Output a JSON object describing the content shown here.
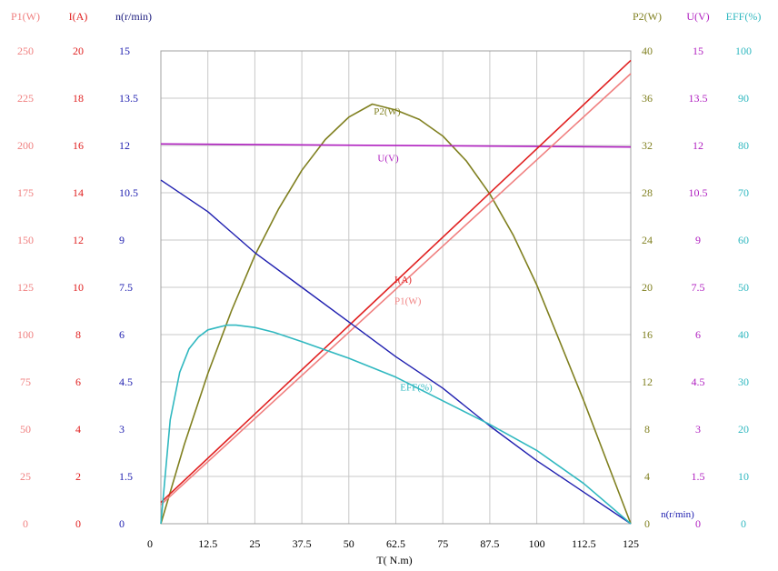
{
  "chart_data": {
    "type": "line",
    "title": "",
    "xlabel": "T( N.m)",
    "xlim": [
      0,
      125
    ],
    "x_ticks": [
      "0",
      "12.5",
      "25",
      "37.5",
      "50",
      "62.5",
      "75",
      "87.5",
      "100",
      "112.5",
      "125"
    ],
    "grid": true,
    "colors": {
      "P1": "#f08080",
      "I": "#e02020",
      "n": "#2020b0",
      "P2": "#808020",
      "U": "#b020c0",
      "EFF": "#30b8c0",
      "grid": "#c8c8c8"
    },
    "axes": [
      {
        "key": "P1",
        "label": "P1(W)",
        "side": "left",
        "min": 0,
        "max": 250,
        "ticks": [
          "0",
          "25",
          "50",
          "75",
          "100",
          "125",
          "150",
          "175",
          "200",
          "225",
          "250"
        ]
      },
      {
        "key": "I",
        "label": "I(A)",
        "side": "left",
        "min": 0,
        "max": 20,
        "ticks": [
          "0",
          "2",
          "4",
          "6",
          "8",
          "10",
          "12",
          "14",
          "16",
          "18",
          "20"
        ]
      },
      {
        "key": "n",
        "label": "n(r/min)",
        "side": "left",
        "min": 0,
        "max": 15,
        "ticks": [
          "0",
          "1.5",
          "3",
          "4.5",
          "6",
          "7.5",
          "9",
          "10.5",
          "12",
          "13.5",
          "15"
        ]
      },
      {
        "key": "P2",
        "label": "P2(W)",
        "side": "right",
        "min": 0,
        "max": 40,
        "ticks": [
          "0",
          "4",
          "8",
          "12",
          "16",
          "20",
          "24",
          "28",
          "32",
          "36",
          "40"
        ]
      },
      {
        "key": "U",
        "label": "U(V)",
        "side": "right",
        "min": 0,
        "max": 15,
        "ticks": [
          "0",
          "1.5",
          "3",
          "4.5",
          "6",
          "7.5",
          "9",
          "10.5",
          "12",
          "13.5",
          "15"
        ]
      },
      {
        "key": "EFF",
        "label": "EFF(%)",
        "side": "right",
        "min": 0,
        "max": 100,
        "ticks": [
          "0",
          "10",
          "20",
          "30",
          "40",
          "50",
          "60",
          "70",
          "80",
          "90",
          "100"
        ]
      }
    ],
    "series": [
      {
        "name": "P2(W)",
        "axis": "P2",
        "x": [
          0,
          6.25,
          12.5,
          18.75,
          25,
          31.25,
          37.5,
          43.75,
          50,
          56.25,
          62.5,
          68.75,
          75,
          81.25,
          87.5,
          93.75,
          100,
          106.25,
          112.5,
          118.75,
          125
        ],
        "y": [
          0,
          6.7,
          12.7,
          18.0,
          22.7,
          26.6,
          29.9,
          32.5,
          34.4,
          35.5,
          35.0,
          34.2,
          32.8,
          30.7,
          27.9,
          24.4,
          20.2,
          15.3,
          10.4,
          5.2,
          0
        ]
      },
      {
        "name": "U(V)",
        "axis": "U",
        "x": [
          0,
          125
        ],
        "y": [
          12.05,
          11.95
        ]
      },
      {
        "name": "I(A)",
        "axis": "I",
        "x": [
          0,
          125
        ],
        "y": [
          0.9,
          19.6
        ]
      },
      {
        "name": "P1(W)",
        "axis": "P1",
        "x": [
          0,
          125
        ],
        "y": [
          10,
          238
        ]
      },
      {
        "name": "n(r/min)",
        "axis": "n",
        "x": [
          0,
          12.5,
          25,
          37.5,
          50,
          62.5,
          75,
          87.5,
          100,
          112.5,
          125
        ],
        "y": [
          10.9,
          9.9,
          8.6,
          7.5,
          6.4,
          5.3,
          4.3,
          3.1,
          2.0,
          1.0,
          0
        ]
      },
      {
        "name": "EFF(%)",
        "axis": "EFF",
        "x": [
          0,
          2.5,
          5,
          7.5,
          10,
          12.5,
          15,
          17.5,
          20,
          25,
          30,
          37.5,
          50,
          62.5,
          75,
          87.5,
          100,
          112.5,
          125
        ],
        "y": [
          0,
          22,
          32,
          37,
          39.5,
          41,
          41.5,
          42,
          42,
          41.5,
          40.5,
          38.5,
          35,
          31,
          26,
          21,
          15.5,
          8.5,
          0
        ]
      }
    ]
  }
}
